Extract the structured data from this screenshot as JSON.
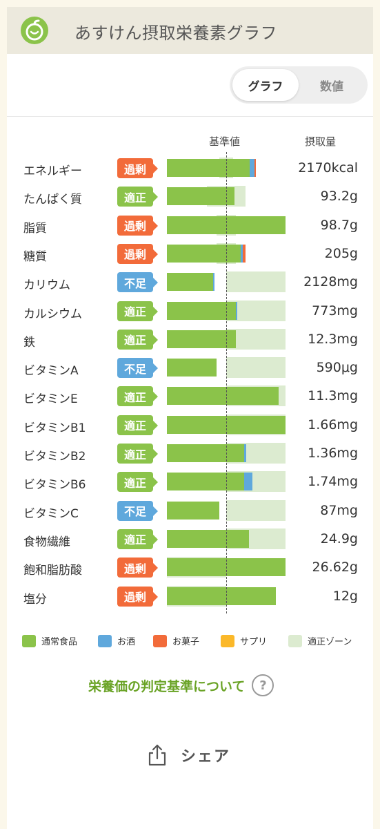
{
  "header": {
    "title": "あすけん摂取栄養素グラフ",
    "logo_icon": "apple-logo-icon"
  },
  "toggle": {
    "graph_label": "グラフ",
    "numeric_label": "数値",
    "selected": "graph"
  },
  "columns": {
    "reference": "基準値",
    "intake": "摂取量"
  },
  "colors": {
    "food": "#8bc34a",
    "alcohol": "#5fa8dc",
    "snack": "#f26b3a",
    "supplement": "#fbb829",
    "zone": "#dcebd0",
    "badge_over": "#f26b3a",
    "badge_ok": "#8bc34a",
    "badge_under": "#5fa8dc"
  },
  "chart_data": {
    "type": "bar",
    "reference_position": 0.5,
    "categories": [
      "エネルギー",
      "たんぱく質",
      "脂質",
      "糖質",
      "カリウム",
      "カルシウム",
      "鉄",
      "ビタミンA",
      "ビタミンE",
      "ビタミンB1",
      "ビタミンB2",
      "ビタミンB6",
      "ビタミンC",
      "食物繊維",
      "飽和脂肪酸",
      "塩分"
    ],
    "status": [
      "過剰",
      "適正",
      "過剰",
      "過剰",
      "不足",
      "適正",
      "適正",
      "不足",
      "適正",
      "適正",
      "適正",
      "適正",
      "不足",
      "適正",
      "過剰",
      "過剰"
    ],
    "values": [
      "2170kcal",
      "93.2g",
      "98.7g",
      "205g",
      "2128mg",
      "773mg",
      "12.3mg",
      "590μg",
      "11.3mg",
      "1.66mg",
      "1.36mg",
      "1.74mg",
      "87mg",
      "24.9g",
      "26.62g",
      "12g"
    ],
    "zones": [
      [
        0.44,
        0.56
      ],
      [
        0.34,
        0.66
      ],
      [
        0.42,
        0.58
      ],
      [
        0.42,
        0.58
      ],
      [
        0.5,
        1.0
      ],
      [
        0.5,
        1.0
      ],
      [
        0.5,
        1.0
      ],
      [
        0.5,
        1.0
      ],
      [
        0.5,
        1.0
      ],
      [
        0.5,
        1.0
      ],
      [
        0.5,
        1.0
      ],
      [
        0.5,
        1.0
      ],
      [
        0.5,
        1.0
      ],
      [
        0.5,
        1.0
      ],
      [
        0.0,
        0.5
      ],
      [
        0.0,
        0.5
      ]
    ],
    "series": [
      {
        "name": "通常食品",
        "values": [
          0.7,
          0.57,
          1.0,
          0.62,
          0.39,
          0.58,
          0.58,
          0.42,
          0.94,
          1.0,
          0.65,
          0.65,
          0.44,
          0.69,
          1.0,
          0.92
        ]
      },
      {
        "name": "お酒",
        "values": [
          0.04,
          0,
          0,
          0.02,
          0.01,
          0.01,
          0,
          0,
          0,
          0,
          0.02,
          0.07,
          0,
          0,
          0,
          0
        ]
      },
      {
        "name": "お菓子",
        "values": [
          0.01,
          0,
          0,
          0.02,
          0,
          0,
          0,
          0,
          0,
          0,
          0,
          0,
          0,
          0,
          0,
          0
        ]
      },
      {
        "name": "サプリ",
        "values": [
          0,
          0,
          0,
          0,
          0,
          0,
          0,
          0,
          0,
          0,
          0,
          0,
          0,
          0,
          0,
          0
        ]
      }
    ]
  },
  "legend": [
    {
      "label": "通常食品",
      "color": "#8bc34a"
    },
    {
      "label": "お酒",
      "color": "#5fa8dc"
    },
    {
      "label": "お菓子",
      "color": "#f26b3a"
    },
    {
      "label": "サプリ",
      "color": "#fbb829"
    },
    {
      "label": "適正ゾーン",
      "color": "#dcebd0"
    }
  ],
  "info_link": {
    "label": "栄養価の判定基準について",
    "icon": "question-icon"
  },
  "share": {
    "label": "シェア",
    "icon": "share-icon"
  }
}
